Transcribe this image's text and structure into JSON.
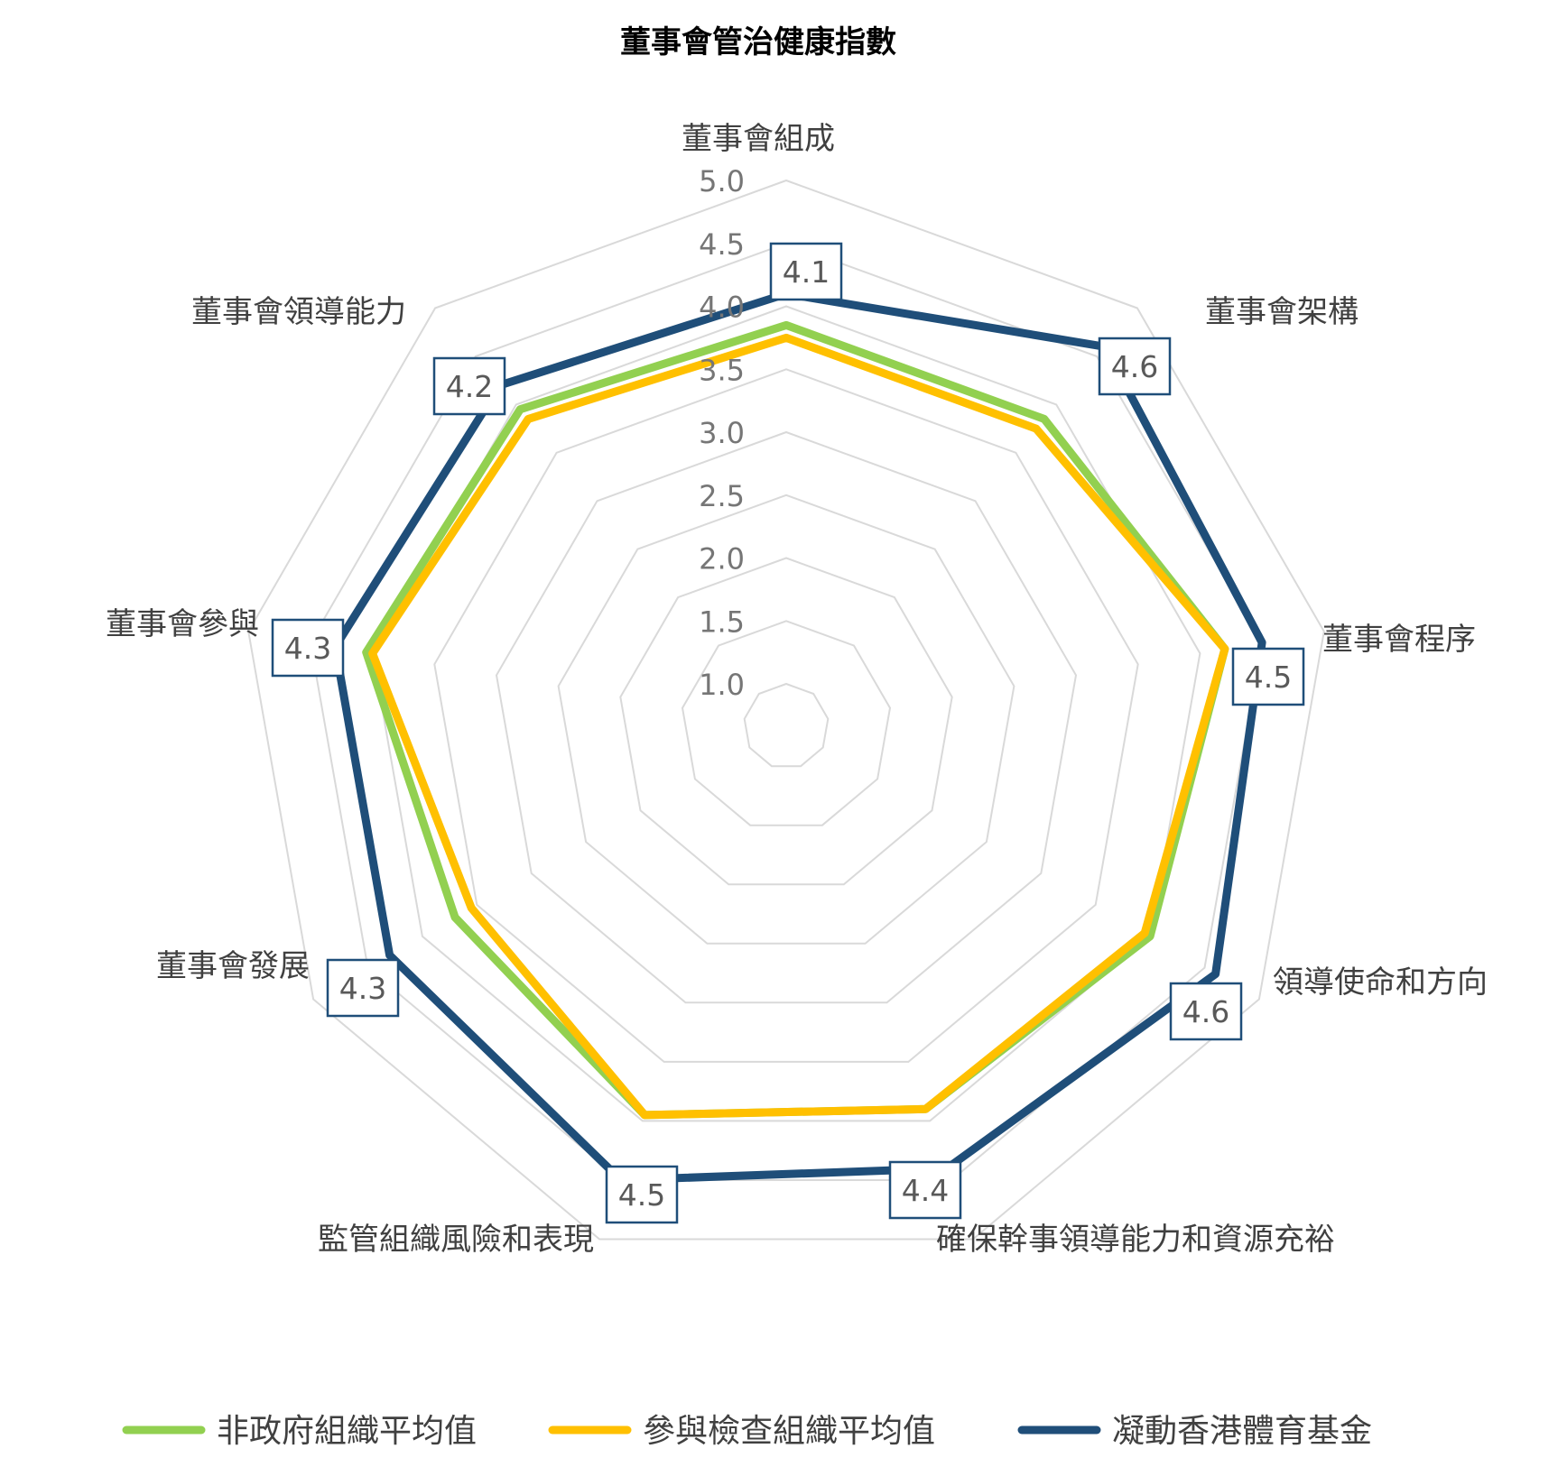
{
  "chart_data": {
    "type": "radar",
    "title": "董事會管治健康指數",
    "categories": [
      "董事會組成",
      "董事會架構",
      "董事會程序",
      "領導使命和方向",
      "確保幹事領導能力和資源充裕",
      "監管組織風險和表現",
      "董事會發展",
      "董事會參與",
      "董事會領導能力"
    ],
    "rlim": [
      1.0,
      5.0
    ],
    "ticks": [
      "1.0",
      "1.5",
      "2.0",
      "2.5",
      "3.0",
      "3.5",
      "4.0",
      "4.5",
      "5.0"
    ],
    "grid": true,
    "legend_position": "bottom",
    "series": [
      {
        "name": "非政府組織平均值",
        "color": "#92D050",
        "values": [
          3.85,
          3.85,
          4.2,
          4.0,
          3.9,
          3.95,
          3.7,
          4.05,
          3.95
        ]
      },
      {
        "name": "參與檢查組織平均值",
        "color": "#FFC000",
        "values": [
          3.75,
          3.75,
          4.2,
          3.95,
          3.9,
          3.95,
          3.55,
          4.0,
          3.85
        ]
      },
      {
        "name": "凝動香港體育基金",
        "color": "#1F4E79",
        "values": [
          4.1,
          4.6,
          4.5,
          4.6,
          4.4,
          4.5,
          4.3,
          4.3,
          4.2
        ],
        "labels": [
          "4.1",
          "4.6",
          "4.5",
          "4.6",
          "4.4",
          "4.5",
          "4.3",
          "4.3",
          "4.2"
        ]
      }
    ]
  }
}
